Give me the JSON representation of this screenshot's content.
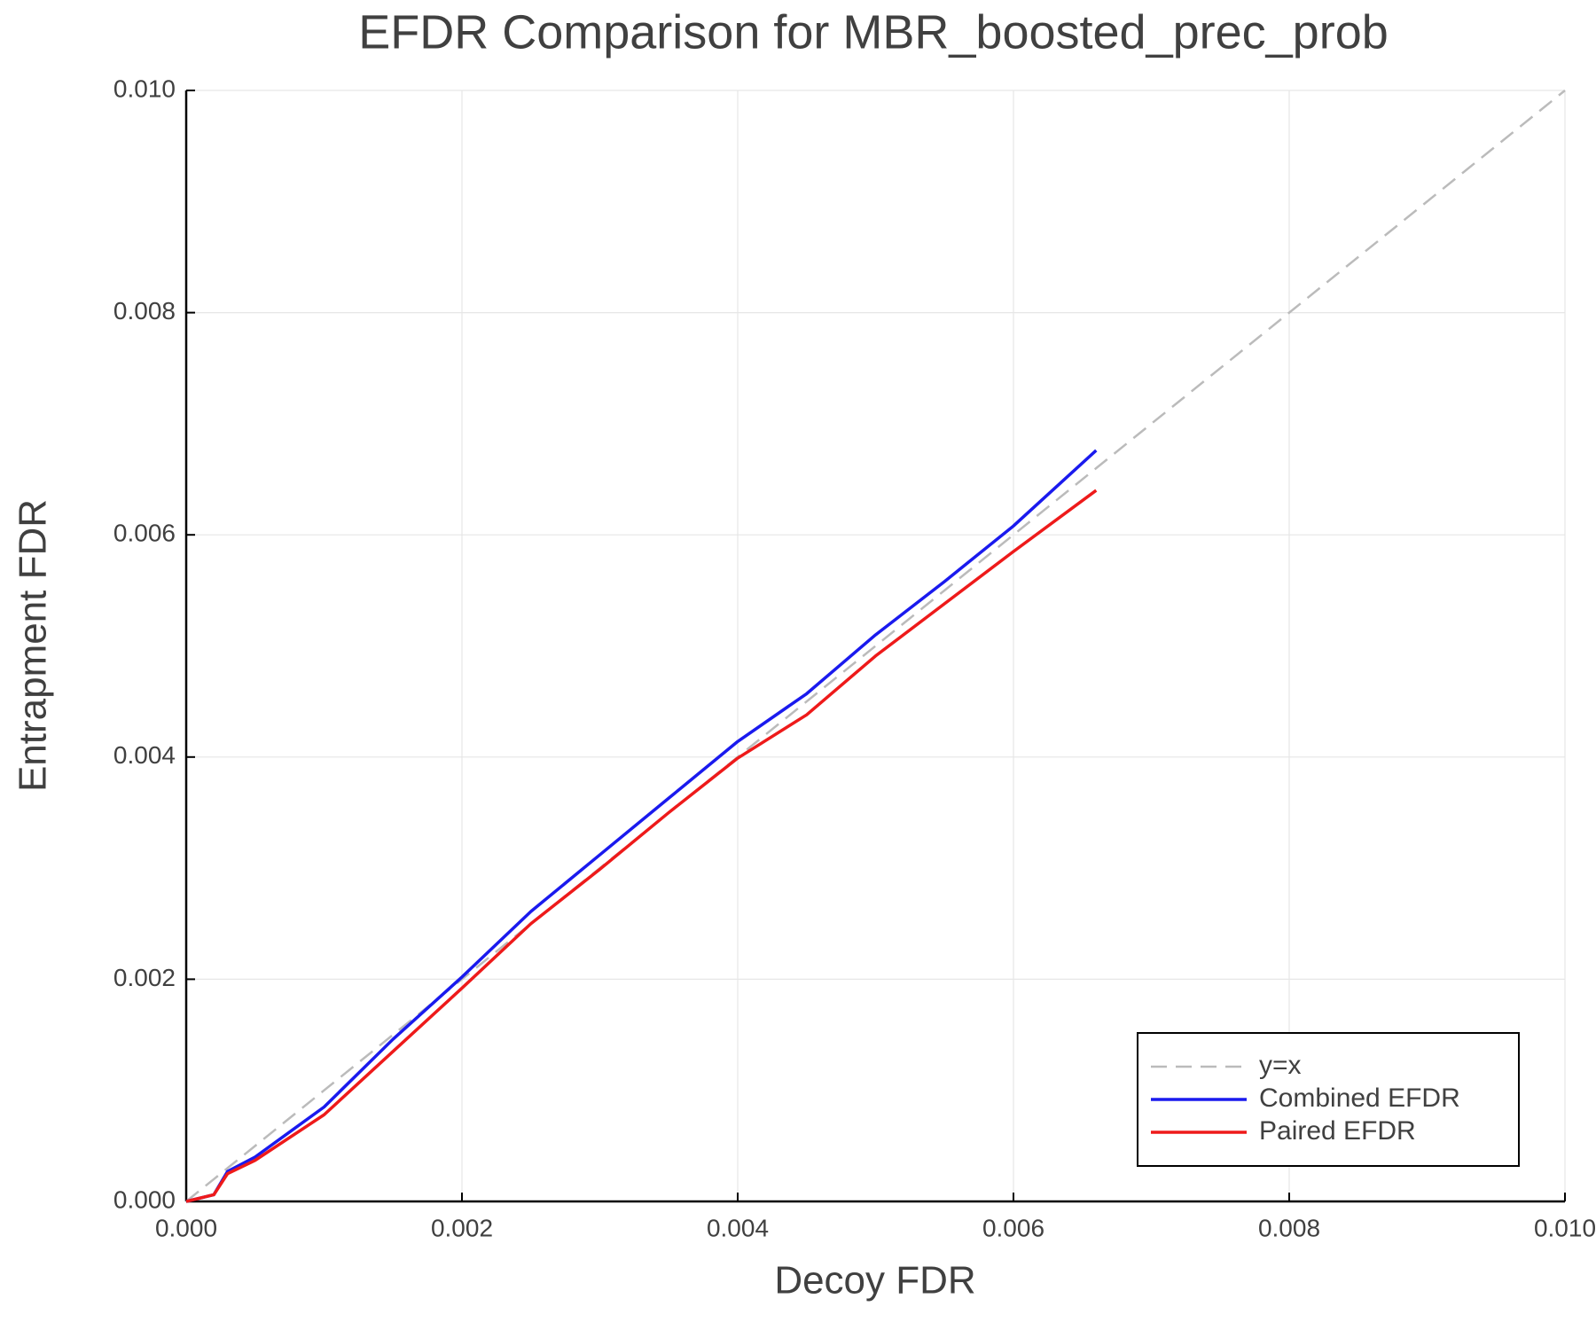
{
  "chart_data": {
    "type": "line",
    "title": "EFDR Comparison for MBR_boosted_prec_prob",
    "x_label": "Decoy FDR",
    "y_label": "Entrapment FDR",
    "x": [
      0,
      0.0002,
      0.0003,
      0.0005,
      0.001,
      0.0015,
      0.002,
      0.0025,
      0.003,
      0.0035,
      0.004,
      0.0045,
      0.005,
      0.0055,
      0.006,
      0.0066,
      0.01
    ],
    "series": [
      {
        "name": "y=x",
        "color": "#bbbbbb",
        "dashed": true,
        "values": [
          0,
          0.0002,
          0.0003,
          0.0005,
          0.001,
          0.0015,
          0.002,
          0.0025,
          0.003,
          0.0035,
          0.004,
          0.0045,
          0.005,
          0.0055,
          0.006,
          0.0066,
          0.01
        ]
      },
      {
        "name": "Combined EFDR",
        "color": "#1a1aee",
        "dashed": false,
        "values": [
          0,
          6e-05,
          0.00027,
          0.0004,
          0.00085,
          0.00146,
          0.00202,
          0.00261,
          0.00312,
          0.00363,
          0.00414,
          0.00457,
          0.0051,
          0.00558,
          0.00608,
          0.00676,
          null
        ]
      },
      {
        "name": "Paired EFDR",
        "color": "#ee1a1a",
        "dashed": false,
        "values": [
          0,
          6e-05,
          0.00025,
          0.00037,
          0.00078,
          0.00135,
          0.00192,
          0.0025,
          0.00299,
          0.0035,
          0.00399,
          0.00438,
          0.00491,
          0.00538,
          0.00585,
          0.0064,
          null
        ]
      }
    ],
    "xlim": [
      0,
      0.01
    ],
    "ylim": [
      0,
      0.01
    ],
    "xticks": [
      {
        "value": 0,
        "label": "0.000"
      },
      {
        "value": 0.002,
        "label": "0.002"
      },
      {
        "value": 0.004,
        "label": "0.004"
      },
      {
        "value": 0.006,
        "label": "0.006"
      },
      {
        "value": 0.008,
        "label": "0.008"
      },
      {
        "value": 0.01,
        "label": "0.010"
      }
    ],
    "yticks": [
      {
        "value": 0,
        "label": "0.000"
      },
      {
        "value": 0.002,
        "label": "0.002"
      },
      {
        "value": 0.004,
        "label": "0.004"
      },
      {
        "value": 0.006,
        "label": "0.006"
      },
      {
        "value": 0.008,
        "label": "0.008"
      },
      {
        "value": 0.01,
        "label": "0.010"
      }
    ],
    "grid": true,
    "legend": "bottom right"
  }
}
